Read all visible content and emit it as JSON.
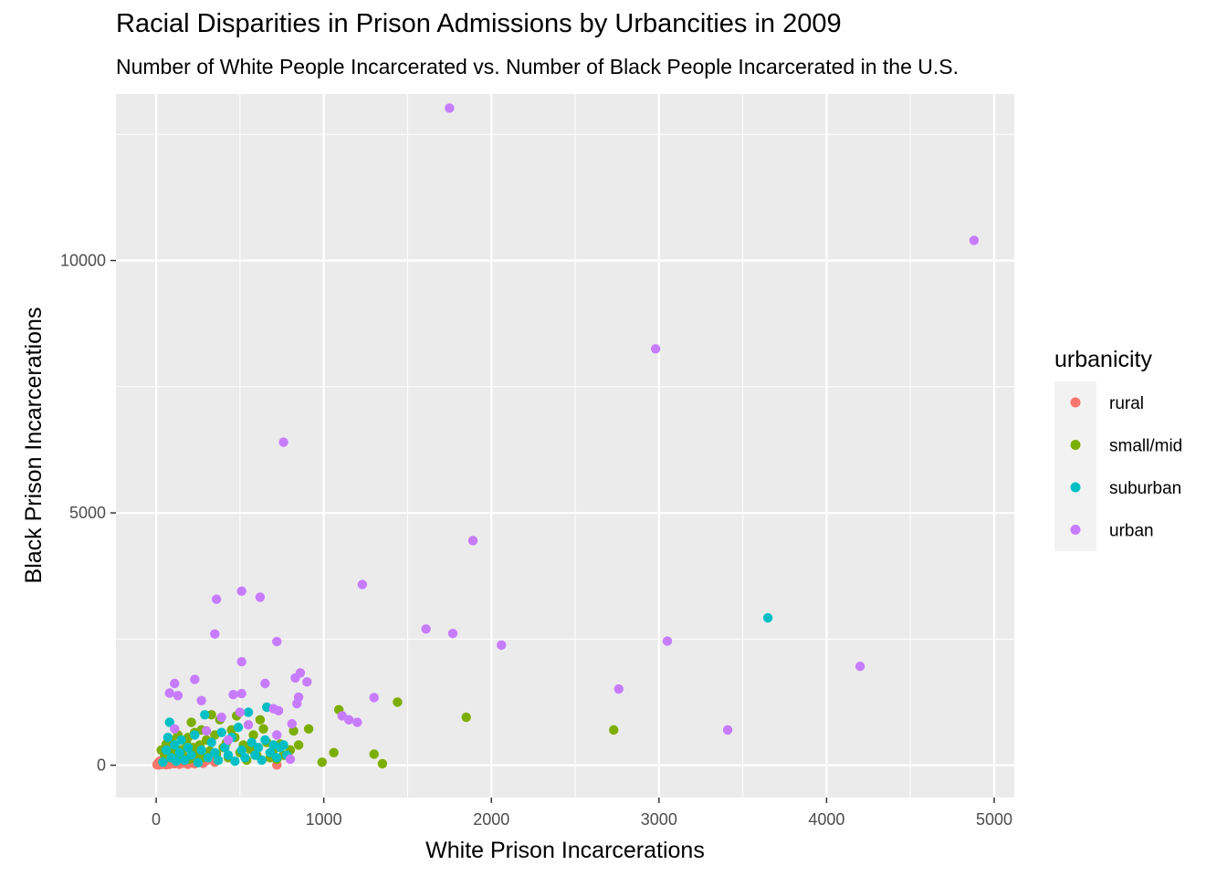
{
  "chart_data": {
    "type": "scatter",
    "title": "Racial Disparities in Prison Admissions by Urbancities in 2009",
    "subtitle": "Number of White People Incarcerated vs. Number of Black People Incarcerated in the U.S.",
    "xlabel": "White Prison Incarcerations",
    "ylabel": "Black Prison Incarcerations",
    "xlim": [
      -240,
      5120
    ],
    "ylim": [
      -640,
      13300
    ],
    "x_ticks": [
      0,
      1000,
      2000,
      3000,
      4000,
      5000
    ],
    "y_ticks": [
      0,
      5000,
      10000
    ],
    "grid": true,
    "legend": {
      "title": "urbanicity",
      "position": "right"
    },
    "series": [
      {
        "name": "rural",
        "color": "#F8766D",
        "points": [
          [
            5,
            10
          ],
          [
            10,
            40
          ],
          [
            15,
            5
          ],
          [
            20,
            80
          ],
          [
            25,
            25
          ],
          [
            30,
            60
          ],
          [
            35,
            15
          ],
          [
            40,
            100
          ],
          [
            50,
            30
          ],
          [
            55,
            70
          ],
          [
            60,
            10
          ],
          [
            70,
            50
          ],
          [
            75,
            120
          ],
          [
            80,
            20
          ],
          [
            90,
            60
          ],
          [
            100,
            90
          ],
          [
            110,
            30
          ],
          [
            120,
            140
          ],
          [
            130,
            50
          ],
          [
            140,
            20
          ],
          [
            150,
            80
          ],
          [
            160,
            110
          ],
          [
            170,
            40
          ],
          [
            180,
            60
          ],
          [
            190,
            20
          ],
          [
            200,
            100
          ],
          [
            210,
            50
          ],
          [
            230,
            30
          ],
          [
            250,
            70
          ],
          [
            280,
            40
          ],
          [
            300,
            90
          ],
          [
            350,
            60
          ],
          [
            720,
            5
          ]
        ]
      },
      {
        "name": "small/mid",
        "color": "#7CAE00",
        "points": [
          [
            30,
            300
          ],
          [
            50,
            200
          ],
          [
            60,
            420
          ],
          [
            80,
            150
          ],
          [
            90,
            500
          ],
          [
            100,
            250
          ],
          [
            110,
            380
          ],
          [
            120,
            100
          ],
          [
            130,
            600
          ],
          [
            150,
            300
          ],
          [
            160,
            200
          ],
          [
            180,
            450
          ],
          [
            190,
            550
          ],
          [
            200,
            120
          ],
          [
            210,
            850
          ],
          [
            220,
            350
          ],
          [
            230,
            650
          ],
          [
            250,
            200
          ],
          [
            260,
            400
          ],
          [
            270,
            700
          ],
          [
            280,
            150
          ],
          [
            300,
            500
          ],
          [
            320,
            280
          ],
          [
            330,
            1000
          ],
          [
            350,
            600
          ],
          [
            360,
            220
          ],
          [
            380,
            900
          ],
          [
            400,
            350
          ],
          [
            420,
            450
          ],
          [
            430,
            150
          ],
          [
            450,
            700
          ],
          [
            470,
            550
          ],
          [
            480,
            980
          ],
          [
            500,
            250
          ],
          [
            520,
            400
          ],
          [
            540,
            100
          ],
          [
            560,
            320
          ],
          [
            580,
            600
          ],
          [
            600,
            200
          ],
          [
            620,
            900
          ],
          [
            640,
            720
          ],
          [
            660,
            450
          ],
          [
            680,
            150
          ],
          [
            700,
            300
          ],
          [
            720,
            120
          ],
          [
            740,
            420
          ],
          [
            760,
            200
          ],
          [
            800,
            300
          ],
          [
            820,
            680
          ],
          [
            850,
            400
          ],
          [
            910,
            720
          ],
          [
            990,
            60
          ],
          [
            1060,
            250
          ],
          [
            1090,
            1100
          ],
          [
            1300,
            220
          ],
          [
            1350,
            30
          ],
          [
            1440,
            1250
          ],
          [
            1850,
            950
          ],
          [
            2730,
            700
          ]
        ]
      },
      {
        "name": "suburban",
        "color": "#00BFC4",
        "points": [
          [
            40,
            60
          ],
          [
            60,
            300
          ],
          [
            70,
            550
          ],
          [
            80,
            850
          ],
          [
            90,
            150
          ],
          [
            110,
            400
          ],
          [
            120,
            80
          ],
          [
            140,
            250
          ],
          [
            150,
            500
          ],
          [
            170,
            100
          ],
          [
            190,
            350
          ],
          [
            210,
            200
          ],
          [
            230,
            600
          ],
          [
            250,
            50
          ],
          [
            270,
            300
          ],
          [
            290,
            1000
          ],
          [
            310,
            150
          ],
          [
            330,
            450
          ],
          [
            350,
            250
          ],
          [
            370,
            100
          ],
          [
            390,
            650
          ],
          [
            410,
            350
          ],
          [
            430,
            200
          ],
          [
            450,
            550
          ],
          [
            470,
            80
          ],
          [
            490,
            750
          ],
          [
            510,
            300
          ],
          [
            530,
            150
          ],
          [
            550,
            1050
          ],
          [
            570,
            450
          ],
          [
            590,
            200
          ],
          [
            610,
            350
          ],
          [
            630,
            100
          ],
          [
            650,
            500
          ],
          [
            660,
            1150
          ],
          [
            680,
            250
          ],
          [
            700,
            400
          ],
          [
            720,
            150
          ],
          [
            740,
            350
          ],
          [
            760,
            400
          ],
          [
            780,
            200
          ],
          [
            3650,
            2920
          ]
        ]
      },
      {
        "name": "urban",
        "color": "#C77CFF",
        "points": [
          [
            1750,
            13020
          ],
          [
            4880,
            10400
          ],
          [
            2980,
            8250
          ],
          [
            760,
            6400
          ],
          [
            1890,
            4450
          ],
          [
            510,
            3450
          ],
          [
            620,
            3330
          ],
          [
            360,
            3290
          ],
          [
            1230,
            3580
          ],
          [
            1610,
            2700
          ],
          [
            1770,
            2610
          ],
          [
            350,
            2600
          ],
          [
            720,
            2450
          ],
          [
            2060,
            2380
          ],
          [
            3050,
            2460
          ],
          [
            510,
            2050
          ],
          [
            230,
            1700
          ],
          [
            110,
            1620
          ],
          [
            650,
            1620
          ],
          [
            860,
            1830
          ],
          [
            830,
            1730
          ],
          [
            900,
            1650
          ],
          [
            80,
            1430
          ],
          [
            130,
            1380
          ],
          [
            460,
            1400
          ],
          [
            510,
            1420
          ],
          [
            2760,
            1510
          ],
          [
            4200,
            1960
          ],
          [
            850,
            1350
          ],
          [
            1300,
            1340
          ],
          [
            700,
            1120
          ],
          [
            730,
            1080
          ],
          [
            840,
            1220
          ],
          [
            1110,
            980
          ],
          [
            1150,
            900
          ],
          [
            1200,
            850
          ],
          [
            810,
            820
          ],
          [
            3410,
            700
          ],
          [
            270,
            1280
          ],
          [
            110,
            720
          ],
          [
            300,
            680
          ],
          [
            390,
            950
          ],
          [
            430,
            500
          ],
          [
            550,
            800
          ],
          [
            720,
            600
          ],
          [
            800,
            120
          ],
          [
            500,
            1050
          ]
        ]
      }
    ]
  }
}
